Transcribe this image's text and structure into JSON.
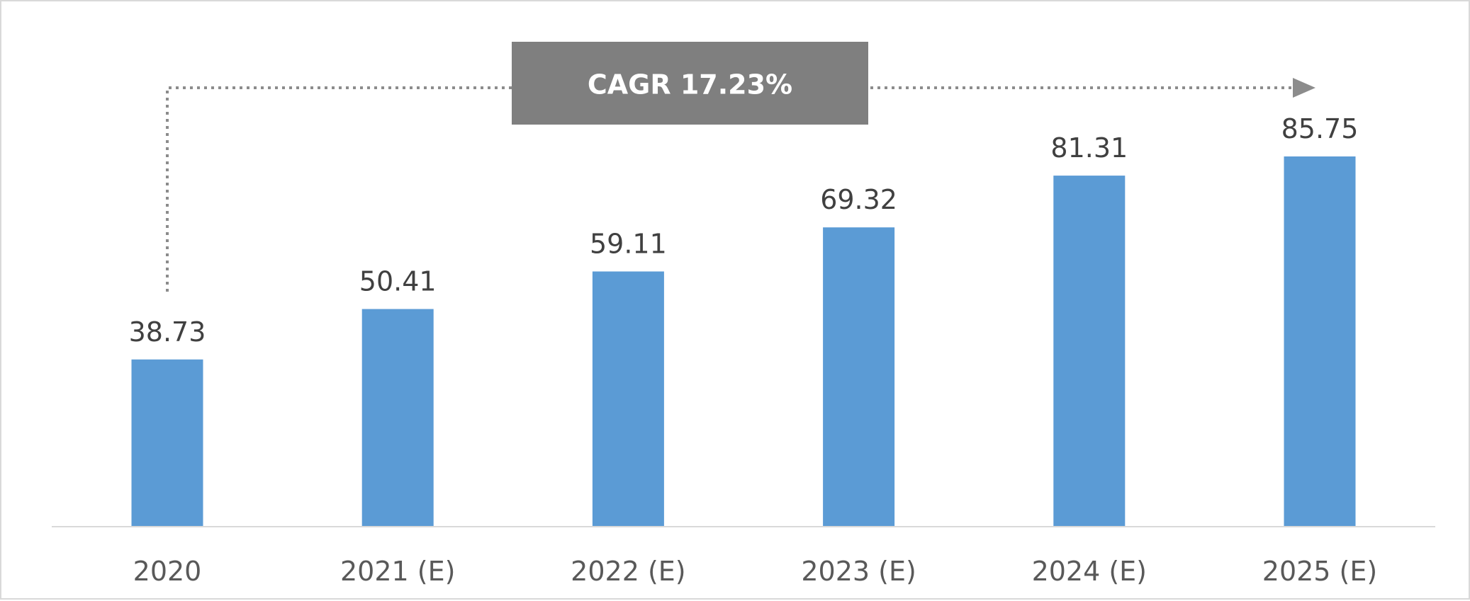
{
  "chart_data": {
    "type": "bar",
    "categories": [
      "2020",
      "2021 (E)",
      "2022 (E)",
      "2023 (E)",
      "2024 (E)",
      "2025 (E)"
    ],
    "values": [
      38.73,
      50.41,
      59.11,
      69.32,
      81.31,
      85.75
    ],
    "data_labels": [
      "38.73",
      "50.41",
      "59.11",
      "69.32",
      "81.31",
      "85.75"
    ],
    "title": "",
    "xlabel": "",
    "ylabel": "",
    "ylim": [
      0,
      100
    ],
    "bar_color": "#5b9bd5",
    "grid": false,
    "annotation": {
      "text": "CAGR 17.23%",
      "from": "2020",
      "to": "2025 (E)",
      "style": "dotted-arrow",
      "box_color": "#7f7f7f",
      "line_color": "#8c8c8c"
    }
  }
}
